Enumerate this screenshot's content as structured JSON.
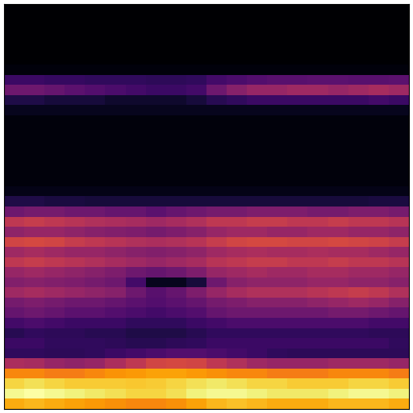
{
  "chart_data": {
    "type": "heatmap",
    "tick_labels": false,
    "cells": [
      [
        0,
        0,
        0,
        0,
        0,
        0,
        0,
        0,
        0,
        0,
        0,
        0,
        0,
        0,
        0,
        0,
        0,
        0,
        0,
        0
      ],
      [
        0,
        0,
        0,
        0,
        0,
        0,
        0,
        0,
        0,
        0,
        0,
        0,
        0,
        0,
        0,
        0,
        0,
        0,
        0,
        0
      ],
      [
        0,
        0,
        0,
        0,
        0,
        0,
        0,
        0,
        0,
        0,
        0,
        0,
        0,
        0,
        0,
        0,
        0,
        0,
        0,
        0
      ],
      [
        0,
        0,
        0,
        0,
        0,
        0,
        0,
        0,
        0,
        0,
        0,
        0,
        0,
        0,
        0,
        0,
        0,
        0,
        0,
        0
      ],
      [
        0,
        0,
        0,
        0,
        0,
        0,
        0,
        0,
        0,
        0,
        0,
        0,
        0,
        0,
        0,
        0,
        0,
        0,
        0,
        0
      ],
      [
        0,
        0,
        0,
        0,
        0,
        0,
        0,
        0,
        0,
        0,
        0,
        0,
        0,
        0,
        0,
        0,
        0,
        0,
        0,
        0
      ],
      [
        0.02,
        0.02,
        0.02,
        0.02,
        0.02,
        0.02,
        0.02,
        0.02,
        0.02,
        0.02,
        0.02,
        0.02,
        0.02,
        0.02,
        0.02,
        0.02,
        0.02,
        0.02,
        0.02,
        0.02
      ],
      [
        0.18,
        0.18,
        0.17,
        0.17,
        0.16,
        0.16,
        0.16,
        0.15,
        0.15,
        0.16,
        0.2,
        0.22,
        0.24,
        0.25,
        0.25,
        0.26,
        0.26,
        0.25,
        0.25,
        0.26
      ],
      [
        0.3,
        0.3,
        0.28,
        0.26,
        0.24,
        0.22,
        0.2,
        0.18,
        0.18,
        0.2,
        0.3,
        0.36,
        0.4,
        0.4,
        0.42,
        0.42,
        0.4,
        0.42,
        0.44,
        0.42
      ],
      [
        0.12,
        0.12,
        0.1,
        0.1,
        0.1,
        0.08,
        0.08,
        0.08,
        0.08,
        0.1,
        0.14,
        0.16,
        0.18,
        0.18,
        0.18,
        0.18,
        0.18,
        0.18,
        0.2,
        0.18
      ],
      [
        0.05,
        0.05,
        0.05,
        0.05,
        0.05,
        0.05,
        0.05,
        0.05,
        0.05,
        0.05,
        0.05,
        0.05,
        0.05,
        0.05,
        0.05,
        0.05,
        0.05,
        0.05,
        0.05,
        0.05
      ],
      [
        0.02,
        0.02,
        0.02,
        0.02,
        0.02,
        0.02,
        0.02,
        0.02,
        0.02,
        0.02,
        0.02,
        0.02,
        0.02,
        0.02,
        0.02,
        0.02,
        0.02,
        0.02,
        0.02,
        0.02
      ],
      [
        0.02,
        0.02,
        0.02,
        0.02,
        0.02,
        0.02,
        0.02,
        0.02,
        0.02,
        0.02,
        0.02,
        0.02,
        0.02,
        0.02,
        0.02,
        0.02,
        0.02,
        0.02,
        0.02,
        0.02
      ],
      [
        0.02,
        0.02,
        0.02,
        0.02,
        0.02,
        0.02,
        0.02,
        0.02,
        0.02,
        0.02,
        0.02,
        0.02,
        0.02,
        0.02,
        0.02,
        0.02,
        0.02,
        0.02,
        0.02,
        0.02
      ],
      [
        0.02,
        0.02,
        0.02,
        0.02,
        0.02,
        0.02,
        0.02,
        0.02,
        0.02,
        0.02,
        0.02,
        0.02,
        0.02,
        0.02,
        0.02,
        0.02,
        0.02,
        0.02,
        0.02,
        0.02
      ],
      [
        0.02,
        0.02,
        0.02,
        0.02,
        0.02,
        0.02,
        0.02,
        0.02,
        0.02,
        0.02,
        0.02,
        0.02,
        0.02,
        0.02,
        0.02,
        0.02,
        0.02,
        0.02,
        0.02,
        0.02
      ],
      [
        0.02,
        0.02,
        0.02,
        0.02,
        0.02,
        0.02,
        0.02,
        0.02,
        0.02,
        0.02,
        0.02,
        0.02,
        0.02,
        0.02,
        0.02,
        0.02,
        0.02,
        0.02,
        0.02,
        0.02
      ],
      [
        0.02,
        0.02,
        0.02,
        0.02,
        0.02,
        0.02,
        0.02,
        0.02,
        0.02,
        0.02,
        0.02,
        0.02,
        0.02,
        0.02,
        0.02,
        0.02,
        0.02,
        0.02,
        0.02,
        0.02
      ],
      [
        0.04,
        0.04,
        0.04,
        0.04,
        0.04,
        0.04,
        0.04,
        0.04,
        0.04,
        0.04,
        0.04,
        0.04,
        0.04,
        0.04,
        0.04,
        0.04,
        0.04,
        0.04,
        0.04,
        0.04
      ],
      [
        0.12,
        0.12,
        0.11,
        0.11,
        0.1,
        0.1,
        0.1,
        0.1,
        0.1,
        0.1,
        0.1,
        0.1,
        0.1,
        0.1,
        0.1,
        0.1,
        0.1,
        0.1,
        0.11,
        0.11
      ],
      [
        0.3,
        0.32,
        0.32,
        0.3,
        0.3,
        0.28,
        0.28,
        0.26,
        0.28,
        0.3,
        0.32,
        0.32,
        0.34,
        0.34,
        0.34,
        0.32,
        0.32,
        0.34,
        0.34,
        0.32
      ],
      [
        0.5,
        0.52,
        0.5,
        0.48,
        0.46,
        0.45,
        0.44,
        0.42,
        0.44,
        0.46,
        0.5,
        0.5,
        0.52,
        0.52,
        0.5,
        0.5,
        0.52,
        0.5,
        0.5,
        0.48
      ],
      [
        0.38,
        0.4,
        0.4,
        0.38,
        0.36,
        0.35,
        0.34,
        0.32,
        0.34,
        0.36,
        0.4,
        0.42,
        0.42,
        0.4,
        0.4,
        0.42,
        0.42,
        0.4,
        0.4,
        0.38
      ],
      [
        0.55,
        0.56,
        0.55,
        0.52,
        0.5,
        0.48,
        0.46,
        0.45,
        0.46,
        0.48,
        0.52,
        0.55,
        0.56,
        0.56,
        0.55,
        0.55,
        0.56,
        0.55,
        0.54,
        0.52
      ],
      [
        0.42,
        0.44,
        0.42,
        0.4,
        0.4,
        0.38,
        0.36,
        0.35,
        0.36,
        0.38,
        0.42,
        0.44,
        0.45,
        0.44,
        0.44,
        0.45,
        0.44,
        0.44,
        0.42,
        0.4
      ],
      [
        0.5,
        0.52,
        0.5,
        0.48,
        0.46,
        0.44,
        0.42,
        0.4,
        0.42,
        0.44,
        0.48,
        0.5,
        0.52,
        0.52,
        0.5,
        0.5,
        0.52,
        0.5,
        0.5,
        0.48
      ],
      [
        0.4,
        0.42,
        0.4,
        0.38,
        0.36,
        0.34,
        0.3,
        0.28,
        0.3,
        0.34,
        0.4,
        0.42,
        0.44,
        0.42,
        0.42,
        0.44,
        0.44,
        0.42,
        0.42,
        0.4
      ],
      [
        0.35,
        0.36,
        0.35,
        0.34,
        0.32,
        0.3,
        0.2,
        0.05,
        0.05,
        0.1,
        0.3,
        0.36,
        0.38,
        0.38,
        0.38,
        0.4,
        0.4,
        0.38,
        0.38,
        0.36
      ],
      [
        0.42,
        0.44,
        0.42,
        0.4,
        0.38,
        0.36,
        0.3,
        0.25,
        0.28,
        0.34,
        0.4,
        0.44,
        0.46,
        0.46,
        0.46,
        0.48,
        0.5,
        0.52,
        0.5,
        0.46
      ],
      [
        0.32,
        0.34,
        0.32,
        0.3,
        0.3,
        0.28,
        0.26,
        0.24,
        0.26,
        0.28,
        0.32,
        0.34,
        0.36,
        0.36,
        0.36,
        0.38,
        0.4,
        0.42,
        0.4,
        0.36
      ],
      [
        0.28,
        0.3,
        0.28,
        0.26,
        0.26,
        0.24,
        0.22,
        0.2,
        0.22,
        0.24,
        0.28,
        0.3,
        0.3,
        0.3,
        0.3,
        0.3,
        0.32,
        0.32,
        0.3,
        0.28
      ],
      [
        0.2,
        0.22,
        0.2,
        0.18,
        0.18,
        0.18,
        0.16,
        0.16,
        0.16,
        0.18,
        0.2,
        0.22,
        0.22,
        0.22,
        0.22,
        0.22,
        0.22,
        0.22,
        0.2,
        0.2
      ],
      [
        0.14,
        0.16,
        0.15,
        0.15,
        0.14,
        0.14,
        0.12,
        0.12,
        0.12,
        0.14,
        0.16,
        0.16,
        0.16,
        0.16,
        0.16,
        0.16,
        0.16,
        0.16,
        0.15,
        0.15
      ],
      [
        0.18,
        0.18,
        0.16,
        0.16,
        0.16,
        0.15,
        0.14,
        0.14,
        0.15,
        0.16,
        0.18,
        0.18,
        0.18,
        0.18,
        0.18,
        0.18,
        0.18,
        0.18,
        0.18,
        0.16
      ],
      [
        0.16,
        0.16,
        0.15,
        0.15,
        0.16,
        0.18,
        0.2,
        0.22,
        0.24,
        0.24,
        0.22,
        0.2,
        0.18,
        0.16,
        0.15,
        0.15,
        0.15,
        0.15,
        0.15,
        0.15
      ],
      [
        0.45,
        0.44,
        0.4,
        0.38,
        0.4,
        0.45,
        0.5,
        0.55,
        0.56,
        0.55,
        0.5,
        0.46,
        0.42,
        0.4,
        0.4,
        0.4,
        0.42,
        0.42,
        0.42,
        0.4
      ],
      [
        0.72,
        0.72,
        0.7,
        0.7,
        0.72,
        0.75,
        0.76,
        0.78,
        0.78,
        0.76,
        0.74,
        0.72,
        0.72,
        0.7,
        0.7,
        0.7,
        0.72,
        0.72,
        0.72,
        0.7
      ],
      [
        0.88,
        0.9,
        0.88,
        0.86,
        0.86,
        0.86,
        0.85,
        0.86,
        0.88,
        0.9,
        0.92,
        0.9,
        0.88,
        0.88,
        0.86,
        0.86,
        0.86,
        0.88,
        0.88,
        0.86
      ],
      [
        0.96,
        0.98,
        0.96,
        0.94,
        0.92,
        0.9,
        0.88,
        0.88,
        0.9,
        0.94,
        0.96,
        0.96,
        0.94,
        0.92,
        0.92,
        0.92,
        0.94,
        0.96,
        0.96,
        0.94
      ],
      [
        0.8,
        0.82,
        0.8,
        0.78,
        0.76,
        0.74,
        0.72,
        0.72,
        0.74,
        0.78,
        0.82,
        0.84,
        0.82,
        0.8,
        0.8,
        0.8,
        0.82,
        0.82,
        0.82,
        0.8
      ]
    ]
  }
}
